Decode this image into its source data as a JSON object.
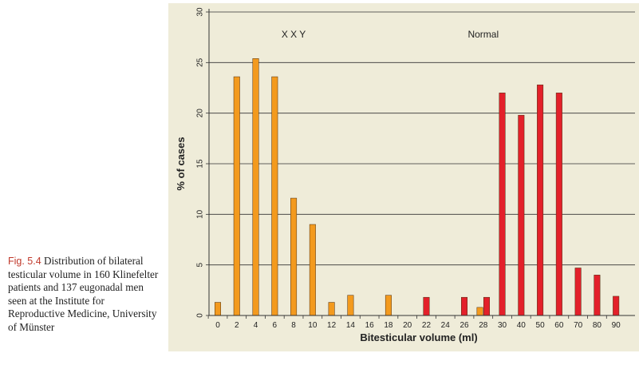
{
  "caption": {
    "fig_label": "Fig. 5.4",
    "text": "Distribution of bilateral testicular volume in 160 Klinefelter patients and 137 eugonadal men seen at the Institute for Reproductive Medicine, University of Münster"
  },
  "colors": {
    "xxy": "#f39a1e",
    "normal": "#e3202a",
    "panel_bg": "#efecd9",
    "caption_label": "#c0392b"
  },
  "chart_data": {
    "type": "bar",
    "xlabel": "Bitesticular volume (ml)",
    "ylabel": "% of cases",
    "ylim": [
      0,
      30
    ],
    "yticks": [
      "0",
      "5",
      "10",
      "15",
      "20",
      "25",
      "30"
    ],
    "grid": true,
    "categories": [
      "0",
      "2",
      "4",
      "6",
      "8",
      "10",
      "12",
      "14",
      "16",
      "18",
      "20",
      "22",
      "24",
      "26",
      "28",
      "30",
      "40",
      "50",
      "60",
      "70",
      "80",
      "90"
    ],
    "annotations": [
      {
        "text": "X X Y",
        "category": "8",
        "y": 27.8
      },
      {
        "text": "Normal",
        "category": "28",
        "y": 27.8
      }
    ],
    "series": [
      {
        "name": "XXY",
        "color": "#f39a1e",
        "values": [
          1.3,
          23.6,
          25.4,
          23.6,
          11.6,
          9.0,
          1.3,
          2.0,
          0,
          2.0,
          0,
          0,
          0,
          0,
          0.8,
          0,
          0,
          0,
          0,
          0,
          0,
          0
        ]
      },
      {
        "name": "Normal",
        "color": "#e3202a",
        "values": [
          0,
          0,
          0,
          0,
          0,
          0,
          0,
          0,
          0,
          0,
          0,
          1.8,
          0,
          1.8,
          1.8,
          22.0,
          19.8,
          22.8,
          22.0,
          4.7,
          4.0,
          1.9
        ]
      }
    ]
  }
}
